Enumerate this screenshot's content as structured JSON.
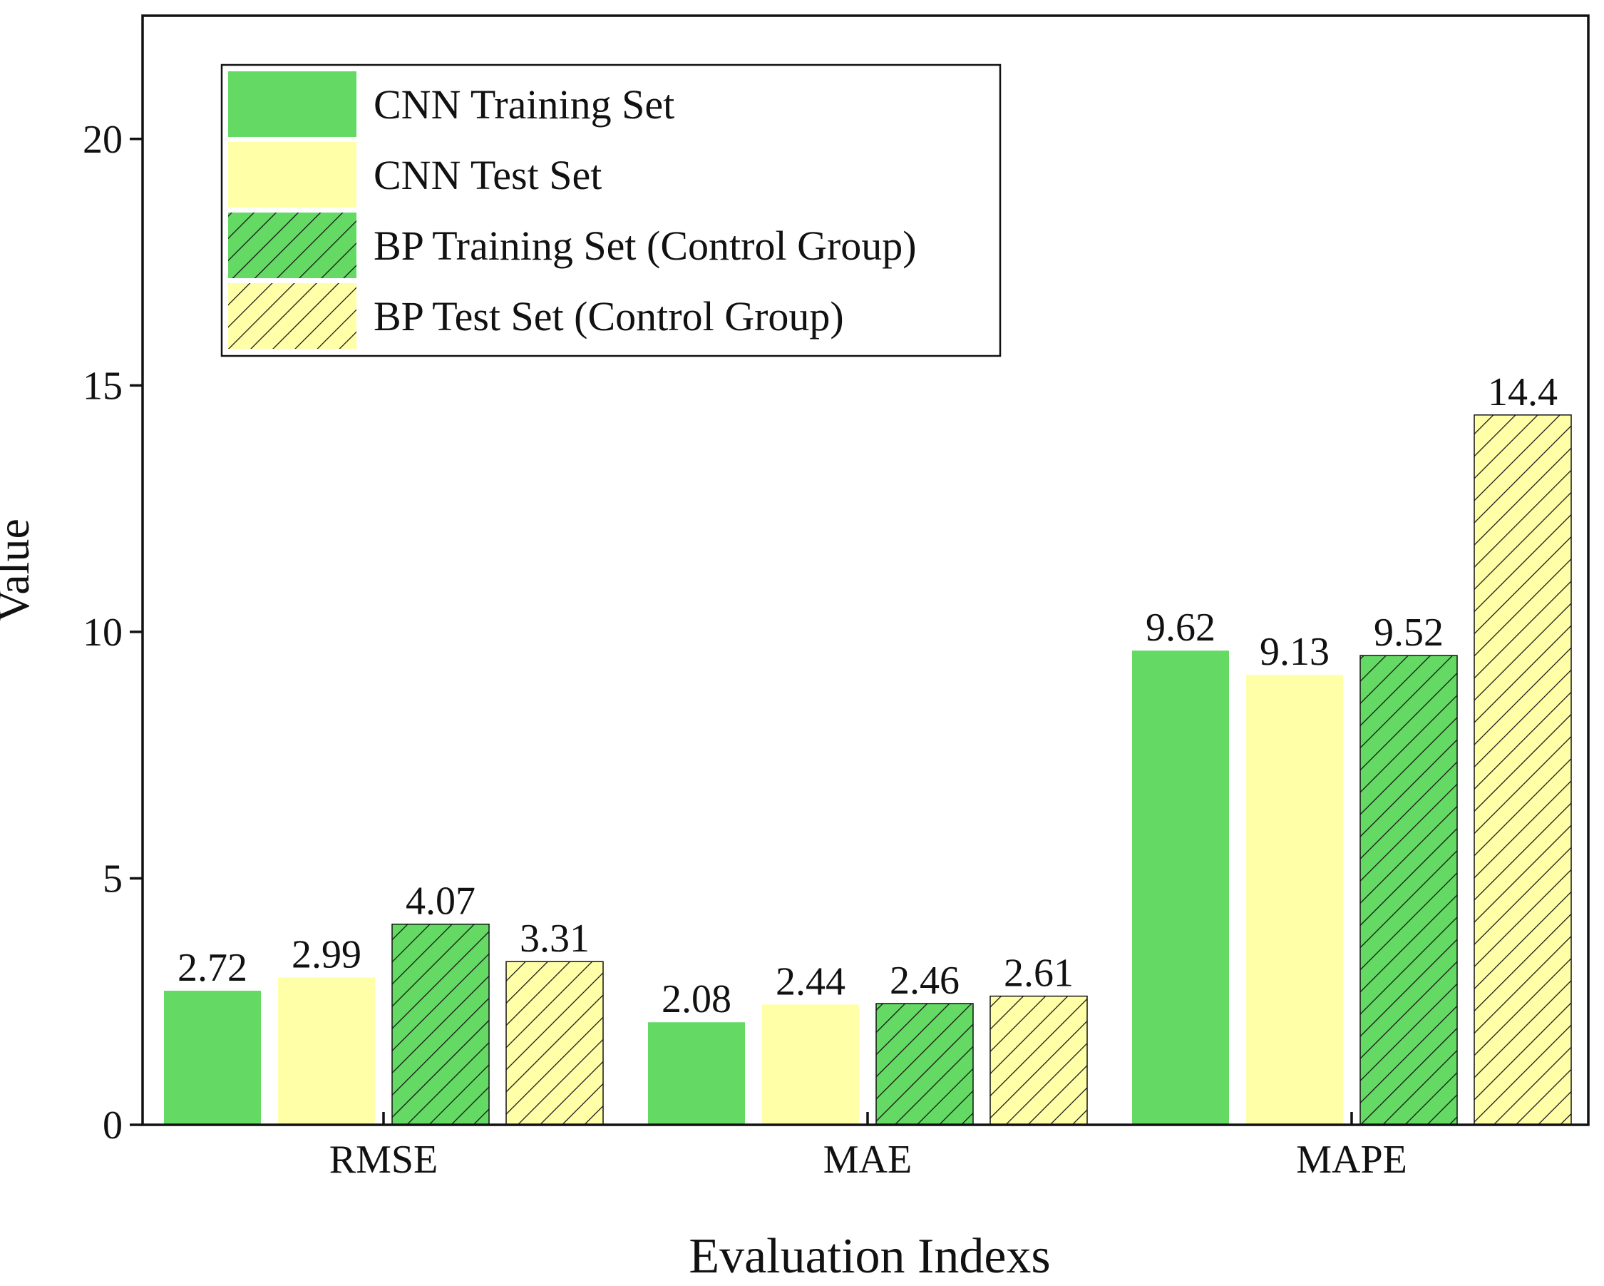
{
  "colors": {
    "green": "#64d964",
    "yellow": "#ffffa8",
    "hatch": "#111111",
    "axis": "#111111",
    "background": "#ffffff"
  },
  "chart_data": {
    "type": "bar",
    "title": "",
    "xlabel": "Evaluation Indexs",
    "ylabel": "Value",
    "categories": [
      "RMSE",
      "MAE",
      "MAPE"
    ],
    "ylim": [
      0,
      22.5
    ],
    "yticks": [
      0,
      5,
      10,
      15,
      20
    ],
    "grid": false,
    "legend_position": "top-left",
    "series": [
      {
        "name": "CNN Training Set",
        "color": "green",
        "hatched": false,
        "values": [
          2.72,
          2.08,
          9.62
        ],
        "labels": [
          "2.72",
          "2.08",
          "9.62"
        ]
      },
      {
        "name": "CNN Test Set",
        "color": "yellow",
        "hatched": false,
        "values": [
          2.99,
          2.44,
          9.13
        ],
        "labels": [
          "2.99",
          "2.44",
          "9.13"
        ]
      },
      {
        "name": "BP Training Set (Control Group)",
        "color": "green",
        "hatched": true,
        "values": [
          4.07,
          2.46,
          9.52
        ],
        "labels": [
          "4.07",
          "2.46",
          "9.52"
        ]
      },
      {
        "name": "BP Test Set (Control Group)",
        "color": "yellow",
        "hatched": true,
        "values": [
          3.31,
          2.61,
          14.4
        ],
        "labels": [
          "3.31",
          "2.61",
          "14.4"
        ]
      }
    ]
  }
}
